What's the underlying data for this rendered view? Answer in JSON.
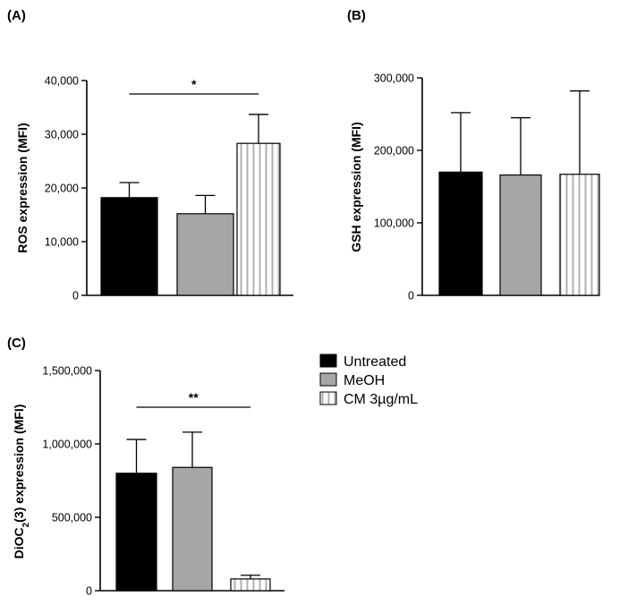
{
  "chart_data": [
    {
      "type": "bar",
      "panel": "(A)",
      "ylabel": "ROS expression (MFI)",
      "ylim": [
        0,
        40000
      ],
      "yticks": [
        0,
        10000,
        20000,
        30000,
        40000
      ],
      "ytick_labels": [
        "0",
        "10,000",
        "20,000",
        "30,000",
        "40,000"
      ],
      "categories": [
        "Untreated",
        "MeOH",
        "CM 3µg/mL"
      ],
      "values": [
        18200,
        15200,
        28300
      ],
      "errors": [
        2800,
        3400,
        5400
      ],
      "significance": {
        "label": "*",
        "from": 0,
        "to": 2,
        "y": 37500
      }
    },
    {
      "type": "bar",
      "panel": "(B)",
      "ylabel": "GSH expression (MFI)",
      "ylim": [
        0,
        300000
      ],
      "yticks": [
        0,
        100000,
        200000,
        300000
      ],
      "ytick_labels": [
        "0",
        "100,000",
        "200,000",
        "300,000"
      ],
      "categories": [
        "Untreated",
        "MeOH",
        "CM 3µg/mL"
      ],
      "values": [
        170000,
        166000,
        167000
      ],
      "errors": [
        82000,
        79000,
        115000
      ],
      "significance": null
    },
    {
      "type": "bar",
      "panel": "(C)",
      "ylabel_main": "DiOC",
      "ylabel_sub": "2",
      "ylabel_rest": "(3) expression (MFI)",
      "ylim": [
        0,
        1500000
      ],
      "yticks": [
        0,
        500000,
        1000000,
        1500000
      ],
      "ytick_labels": [
        "0",
        "500,000",
        "1,000,000",
        "1,500,000"
      ],
      "categories": [
        "Untreated",
        "MeOH",
        "CM 3µg/mL"
      ],
      "values": [
        800000,
        840000,
        80000
      ],
      "errors": [
        230000,
        240000,
        25000
      ],
      "significance": {
        "label": "**",
        "from": 0,
        "to": 2,
        "y": 1250000
      }
    }
  ],
  "legend": [
    {
      "label": "Untreated",
      "style": "black"
    },
    {
      "label": "MeOH",
      "style": "gray"
    },
    {
      "label": "CM 3µg/mL",
      "style": "striped"
    }
  ],
  "colors": {
    "black": "#000000",
    "gray": "#a6a6a6",
    "stripe": "#b0b0b0"
  }
}
